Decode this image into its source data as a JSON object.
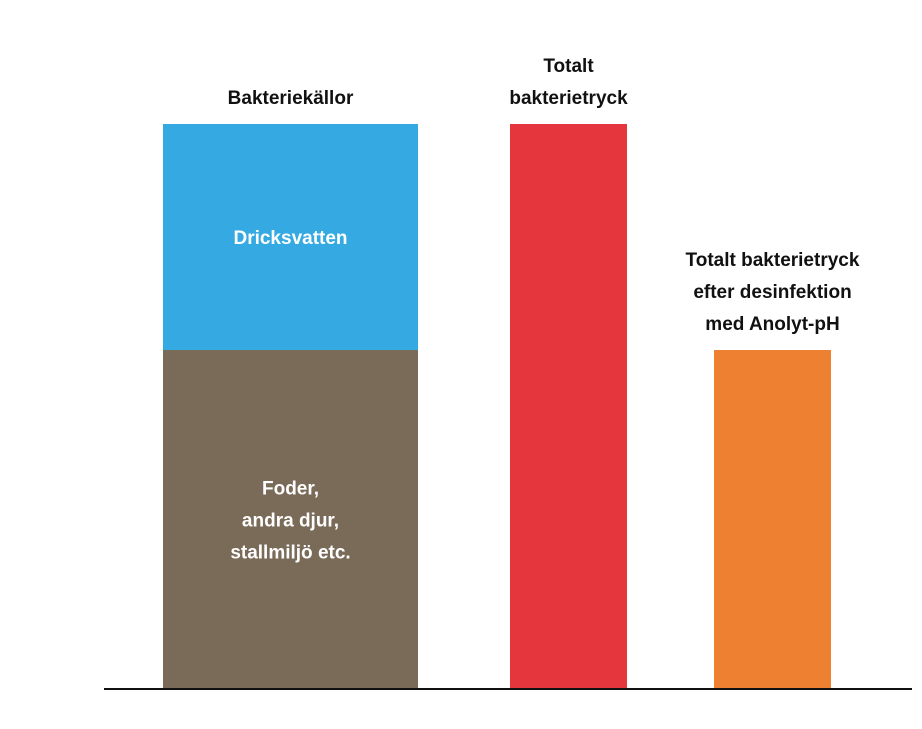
{
  "chart_data": {
    "type": "bar",
    "stacked": true,
    "grid": false,
    "legend": "none",
    "axis": "baseline only",
    "categories": [
      [
        "Bakteriekällor"
      ],
      [
        "Totalt",
        "bakterietryck"
      ],
      [
        "Totalt bakterietryck",
        "efter desinfektion",
        "med Anolyt-pH"
      ]
    ],
    "ylim": [
      0,
      100
    ],
    "series": [
      {
        "name": "",
        "label_lines": [
          "Foder,",
          "andra djur,",
          "stallmiljö etc."
        ],
        "values": [
          60,
          null,
          null
        ],
        "colors": [
          "#7a6a58",
          null,
          null
        ]
      },
      {
        "name": "",
        "label_lines": [
          "Dricksvatten"
        ],
        "values": [
          40,
          null,
          null
        ],
        "colors": [
          "#35aae2",
          null,
          null
        ]
      },
      {
        "name": "",
        "label_lines": [],
        "values": [
          null,
          100,
          60
        ],
        "colors": [
          null,
          "#e5363e",
          "#ee8031"
        ]
      }
    ],
    "baseline_color": "#111111"
  }
}
